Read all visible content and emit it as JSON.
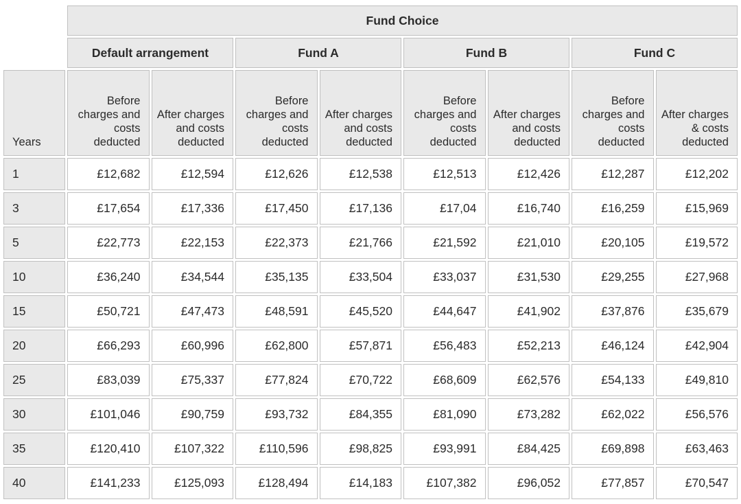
{
  "table": {
    "title": "Fund Choice",
    "years_label": "Years",
    "groups": [
      {
        "label": "Default arrangement"
      },
      {
        "label": "Fund A"
      },
      {
        "label": "Fund B"
      },
      {
        "label": "Fund C"
      }
    ],
    "subheaders": [
      "Before charges and costs deducted",
      "After charges and costs deducted",
      "Before charges and costs deducted",
      "After charges and costs deducted",
      "Before charges and costs deducted",
      "After charges and costs deducted",
      "Before charges and costs deducted",
      "After charges & costs deducted"
    ],
    "rows": [
      {
        "years": "1",
        "values": [
          "£12,682",
          "£12,594",
          "£12,626",
          "£12,538",
          "£12,513",
          "£12,426",
          "£12,287",
          "£12,202"
        ]
      },
      {
        "years": "3",
        "values": [
          "£17,654",
          "£17,336",
          "£17,450",
          "£17,136",
          "£17,04",
          "£16,740",
          "£16,259",
          "£15,969"
        ]
      },
      {
        "years": "5",
        "values": [
          "£22,773",
          "£22,153",
          "£22,373",
          "£21,766",
          "£21,592",
          "£21,010",
          "£20,105",
          "£19,572"
        ]
      },
      {
        "years": "10",
        "values": [
          "£36,240",
          "£34,544",
          "£35,135",
          "£33,504",
          "£33,037",
          "£31,530",
          "£29,255",
          "£27,968"
        ]
      },
      {
        "years": "15",
        "values": [
          "£50,721",
          "£47,473",
          "£48,591",
          "£45,520",
          "£44,647",
          "£41,902",
          "£37,876",
          "£35,679"
        ]
      },
      {
        "years": "20",
        "values": [
          "£66,293",
          "£60,996",
          "£62,800",
          "£57,871",
          "£56,483",
          "£52,213",
          "£46,124",
          "£42,904"
        ]
      },
      {
        "years": "25",
        "values": [
          "£83,039",
          "£75,337",
          "£77,824",
          "£70,722",
          "£68,609",
          "£62,576",
          "£54,133",
          "£49,810"
        ]
      },
      {
        "years": "30",
        "values": [
          "£101,046",
          "£90,759",
          "£93,732",
          "£84,355",
          "£81,090",
          "£73,282",
          "£62,022",
          "£56,576"
        ]
      },
      {
        "years": "35",
        "values": [
          "£120,410",
          "£107,322",
          "£110,596",
          "£98,825",
          "£93,991",
          "£84,425",
          "£69,898",
          "£63,463"
        ]
      },
      {
        "years": "40",
        "values": [
          "£141,233",
          "£125,093",
          "£128,494",
          "£14,183",
          "£107,382",
          "£96,052",
          "£77,857",
          "£70,547"
        ]
      }
    ]
  },
  "colors": {
    "header_background": "#e9e9e9",
    "cell_background": "#ffffff",
    "border": "#c0c0c0",
    "text": "#2b2b2b"
  }
}
